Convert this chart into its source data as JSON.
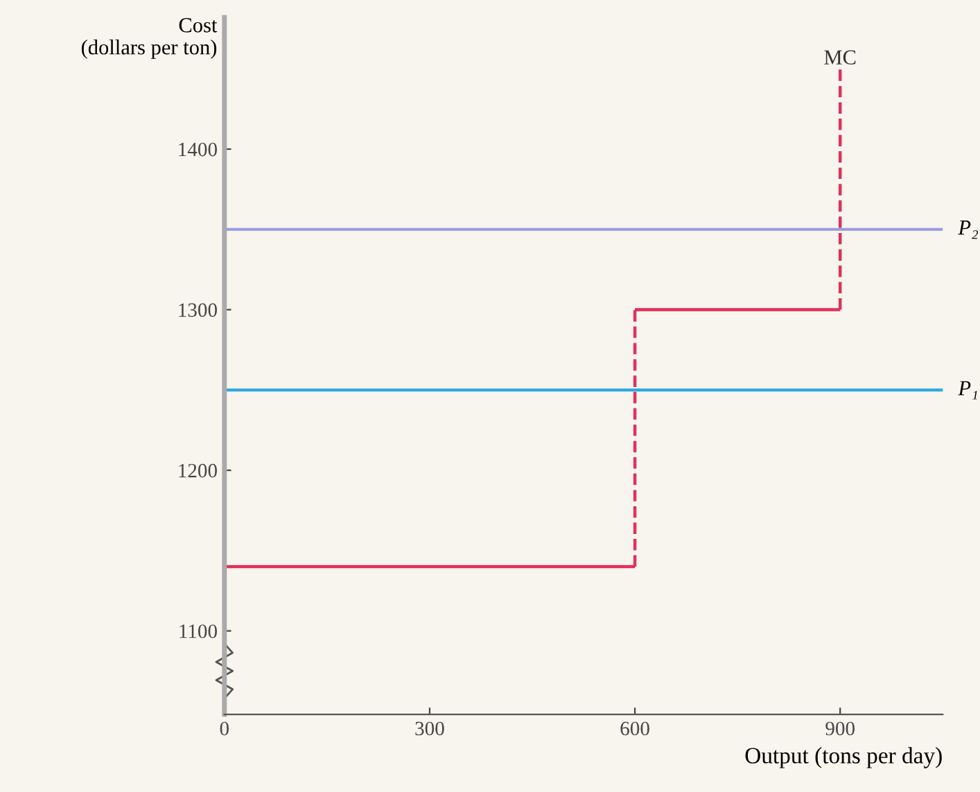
{
  "chart_data": {
    "type": "step",
    "xlabel": "Output (tons per day)",
    "ylabel": "Cost\n(dollars per ton)",
    "x": [
      0,
      600,
      600,
      900,
      900
    ],
    "series": [
      {
        "name": "MC",
        "color": "#e0305a",
        "values": [
          1140,
          1140,
          1300,
          1300,
          1450
        ]
      }
    ],
    "xlim": [
      0,
      1050
    ],
    "ylim": [
      1048,
      1482
    ],
    "xticks": [
      0,
      300,
      600,
      900
    ],
    "yticks": [
      1100,
      1200,
      1300,
      1400
    ],
    "ref_lines": [
      {
        "axis": "y",
        "value": 1350,
        "label": "P₂",
        "color": "#9a9ae0"
      },
      {
        "axis": "y",
        "value": 1250,
        "label": "P₁",
        "color": "#2aa8e0"
      }
    ],
    "grid": false,
    "legend": false
  }
}
